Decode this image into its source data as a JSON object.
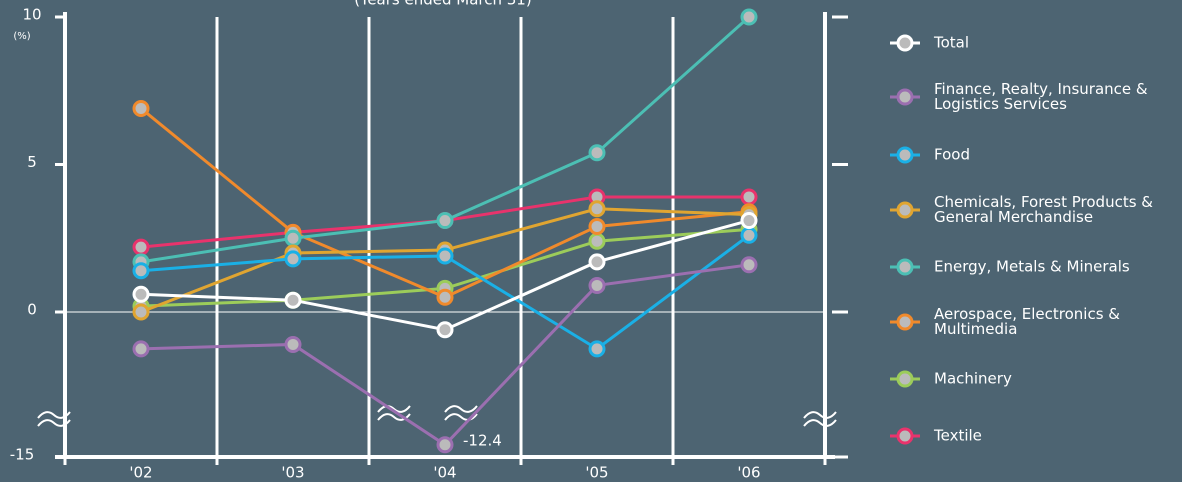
{
  "chart_data": {
    "type": "line",
    "subtitle": "(Years ended March 31)",
    "y_unit": "(%)",
    "categories": [
      "'02",
      "'03",
      "'04",
      "'05",
      "'06"
    ],
    "ylim": [
      -15,
      10
    ],
    "yticks": [
      -15,
      0,
      5,
      10
    ],
    "series": [
      {
        "name": "Total",
        "color": "#ffffff",
        "values": [
          0.6,
          0.4,
          -0.6,
          1.7,
          3.1
        ]
      },
      {
        "name": "Finance, Realty, Insurance & Logistics Services",
        "color": "#9b6fb0",
        "values": [
          -1.25,
          -1.1,
          -12.4,
          0.9,
          1.6
        ]
      },
      {
        "name": "Food",
        "color": "#1ab0e6",
        "values": [
          1.4,
          1.8,
          1.9,
          -1.25,
          2.6
        ]
      },
      {
        "name": "Chemicals, Forest Products & General Merchandise",
        "color": "#e0a531",
        "values": [
          0,
          2.0,
          2.1,
          3.5,
          3.3
        ]
      },
      {
        "name": "Energy, Metals & Minerals",
        "color": "#4cbfb4",
        "values": [
          1.7,
          2.5,
          3.1,
          5.4,
          10
        ]
      },
      {
        "name": "Aerospace, Electronics & Multimedia",
        "color": "#f08a2c",
        "values": [
          6.9,
          2.7,
          0.5,
          2.9,
          3.4
        ]
      },
      {
        "name": "Machinery",
        "color": "#9ccc5a",
        "values": [
          0.2,
          0.4,
          0.8,
          2.4,
          2.8
        ]
      },
      {
        "name": "Textile",
        "color": "#e8336c",
        "values": [
          2.2,
          2.7,
          3.1,
          3.9,
          3.9
        ]
      }
    ]
  }
}
